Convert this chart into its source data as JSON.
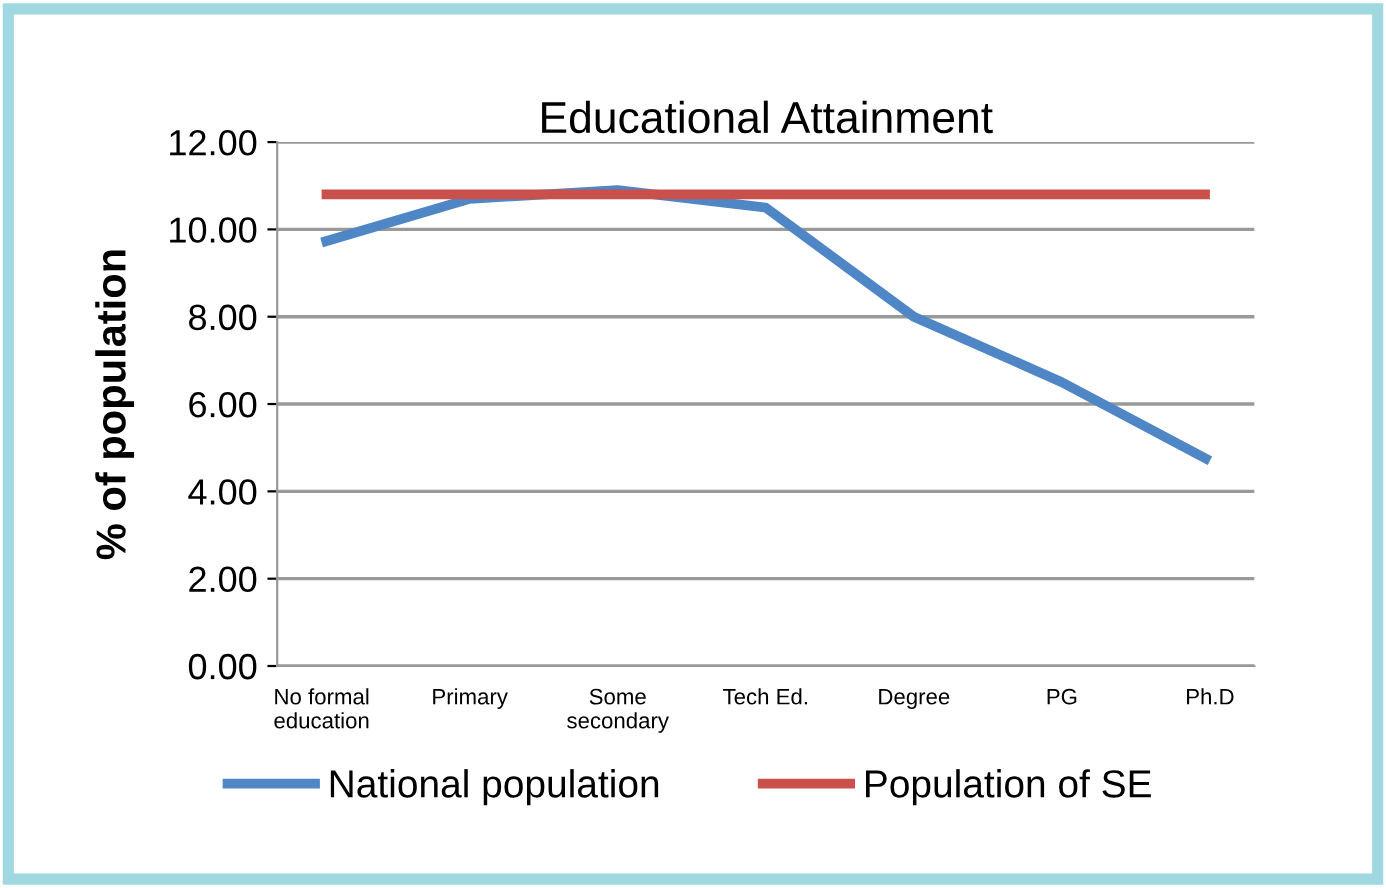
{
  "chart_data": {
    "type": "line",
    "title": "Educational Attainment",
    "ylabel": "% of population",
    "categories": [
      "No formal\neducation",
      "Primary",
      "Some\nsecondary",
      "Tech Ed.",
      "Degree",
      "PG",
      "Ph.D"
    ],
    "series": [
      {
        "name": "National population",
        "color": "#4f86c6",
        "values": [
          9.7,
          10.7,
          10.9,
          10.5,
          8.0,
          6.5,
          4.7
        ]
      },
      {
        "name": "Population of SE",
        "color": "#c9504b",
        "values": [
          10.8,
          10.8,
          10.8,
          10.8,
          10.8,
          10.8,
          10.8
        ]
      }
    ],
    "ylim": [
      0,
      12
    ],
    "yticks": [
      {
        "value": 0,
        "label": "0.00"
      },
      {
        "value": 2,
        "label": "2.00"
      },
      {
        "value": 4,
        "label": "4.00"
      },
      {
        "value": 6,
        "label": "6.00"
      },
      {
        "value": 8,
        "label": "8.00"
      },
      {
        "value": 10,
        "label": "10.00"
      },
      {
        "value": 12,
        "label": "12.00"
      }
    ],
    "grid": "y",
    "legend": "bottom",
    "marker": "none",
    "line_style": "solid"
  }
}
